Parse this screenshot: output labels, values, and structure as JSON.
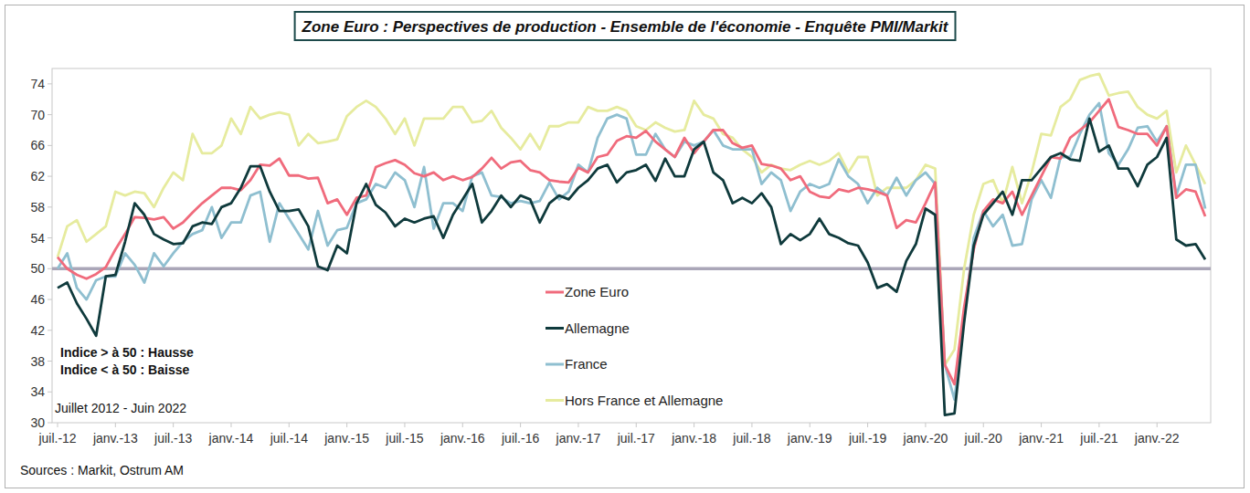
{
  "chart_data": {
    "type": "line",
    "title": "Zone Euro : Perspectives de production - Ensemble de l'économie - Enquête PMI/Markit",
    "annotations": [
      "Indice > à 50 : Hausse",
      "Indice < à 50 : Baisse",
      "Juillet 2012 - Juin 2022"
    ],
    "source": "Sources : Markit, Ostrum AM",
    "reference_line": 50,
    "categories": [
      "juil.-12",
      null,
      null,
      null,
      null,
      null,
      "janv.-13",
      null,
      null,
      null,
      null,
      null,
      "juil.-13",
      null,
      null,
      null,
      null,
      null,
      "janv.-14",
      null,
      null,
      null,
      null,
      null,
      "juil.-14",
      null,
      null,
      null,
      null,
      null,
      "janv.-15",
      null,
      null,
      null,
      null,
      null,
      "juil.-15",
      null,
      null,
      null,
      null,
      null,
      "janv.-16",
      null,
      null,
      null,
      null,
      null,
      "juil.-16",
      null,
      null,
      null,
      null,
      null,
      "janv.-17",
      null,
      null,
      null,
      null,
      null,
      "juil.-17",
      null,
      null,
      null,
      null,
      null,
      "janv.-18",
      null,
      null,
      null,
      null,
      null,
      "juil.-18",
      null,
      null,
      null,
      null,
      null,
      "janv.-19",
      null,
      null,
      null,
      null,
      null,
      "juil.-19",
      null,
      null,
      null,
      null,
      null,
      "janv.-20",
      null,
      null,
      null,
      null,
      null,
      "juil.-20",
      null,
      null,
      null,
      null,
      null,
      "janv.-21",
      null,
      null,
      null,
      null,
      null,
      "juil.-21",
      null,
      null,
      null,
      null,
      null,
      "janv.-22",
      null,
      null,
      null,
      null,
      null
    ],
    "series": [
      {
        "name": "Zone Euro",
        "color": "#f06b7c",
        "values": [
          51.5,
          50.0,
          49.2,
          48.7,
          49.3,
          50.2,
          52.5,
          54.5,
          56.7,
          56.6,
          56.4,
          56.7,
          55.2,
          56.0,
          57.3,
          58.5,
          59.5,
          60.5,
          60.5,
          60.2,
          61.5,
          63.5,
          63.4,
          64.3,
          62.1,
          62.1,
          61.7,
          61.8,
          58.5,
          59.0,
          57.0,
          59.2,
          59.5,
          63.2,
          63.7,
          64.1,
          63.5,
          62.4,
          62.0,
          62.5,
          61.5,
          62.0,
          61.5,
          61.9,
          63.0,
          64.4,
          63.0,
          63.8,
          64.0,
          62.8,
          62.5,
          61.5,
          61.3,
          61.2,
          63.1,
          62.5,
          64.5,
          64.8,
          66.6,
          67.2,
          67.0,
          67.9,
          66.5,
          65.5,
          64.5,
          67.0,
          65.0,
          66.5,
          68.0,
          68.0,
          66.3,
          65.7,
          66.0,
          63.6,
          63.4,
          63.0,
          61.5,
          62.0,
          60.0,
          59.4,
          59.2,
          60.3,
          60.0,
          60.5,
          60.3,
          60.0,
          59.5,
          55.3,
          56.3,
          56.0,
          58.5,
          61.2,
          37.5,
          35.0,
          45.0,
          52.5,
          57.5,
          59.0,
          58.5,
          60.0,
          57.0,
          59.5,
          62.0,
          64.5,
          64.3,
          67.0,
          68.0,
          69.0,
          70.5,
          72.0,
          68.4,
          68.0,
          67.5,
          67.5,
          66.0,
          68.5,
          59.2,
          60.3,
          60.0,
          56.8
        ]
      },
      {
        "name": "Allemagne",
        "color": "#0f3a3c",
        "values": [
          47.5,
          48.2,
          45.5,
          43.5,
          41.3,
          49.0,
          49.2,
          53.5,
          58.5,
          57.0,
          54.5,
          53.8,
          53.2,
          53.3,
          55.5,
          56.0,
          55.8,
          58.0,
          58.5,
          60.5,
          63.3,
          63.3,
          60.0,
          57.5,
          57.5,
          57.7,
          55.5,
          50.3,
          49.8,
          53.0,
          52.0,
          58.5,
          61.0,
          58.3,
          57.3,
          55.5,
          56.5,
          56.0,
          56.5,
          56.8,
          54.0,
          57.0,
          59.0,
          61.0,
          56.0,
          57.5,
          59.5,
          58.0,
          59.5,
          59.0,
          56.0,
          58.5,
          59.5,
          59.0,
          60.5,
          61.5,
          63.0,
          63.5,
          61.2,
          62.5,
          62.8,
          63.5,
          61.4,
          64.3,
          62.0,
          62.0,
          65.5,
          66.5,
          62.5,
          61.5,
          58.5,
          59.2,
          58.5,
          59.8,
          58.0,
          53.2,
          54.5,
          53.7,
          54.5,
          56.5,
          54.5,
          54.0,
          53.3,
          53.0,
          50.8,
          47.5,
          48.0,
          47.0,
          51.0,
          53.2,
          57.8,
          57.0,
          31.0,
          31.2,
          43.0,
          53.0,
          57.0,
          58.5,
          60.0,
          57.0,
          61.5,
          61.5,
          63.0,
          64.5,
          65.0,
          64.2,
          64.0,
          69.5,
          65.2,
          66.0,
          63.0,
          63.0,
          60.7,
          63.5,
          64.5,
          67.0,
          53.8,
          53.0,
          53.2,
          51.2
        ]
      },
      {
        "name": "France",
        "color": "#8fbfd0",
        "values": [
          50.0,
          52.0,
          47.5,
          46.0,
          48.5,
          49.0,
          49.0,
          52.0,
          50.5,
          48.2,
          52.0,
          50.3,
          52.0,
          53.5,
          54.5,
          55.0,
          58.0,
          54.0,
          56.0,
          56.0,
          59.5,
          60.0,
          53.5,
          58.5,
          56.5,
          54.5,
          52.5,
          57.5,
          53.0,
          55.0,
          55.3,
          58.5,
          59.0,
          61.0,
          60.5,
          62.5,
          61.5,
          58.0,
          63.2,
          55.2,
          58.5,
          58.5,
          57.5,
          62.0,
          62.5,
          59.5,
          59.3,
          58.5,
          58.8,
          58.5,
          58.8,
          61.2,
          59.0,
          60.0,
          63.5,
          62.5,
          67.0,
          69.5,
          70.0,
          69.5,
          64.8,
          64.8,
          67.5,
          65.5,
          64.5,
          66.5,
          66.0,
          66.5,
          68.0,
          66.0,
          65.5,
          65.5,
          65.5,
          61.0,
          62.5,
          61.5,
          57.5,
          60.0,
          61.0,
          60.5,
          61.0,
          64.2,
          62.0,
          61.0,
          58.5,
          60.5,
          59.5,
          61.8,
          59.5,
          61.5,
          62.5,
          61.0,
          37.5,
          33.0,
          43.5,
          54.0,
          57.5,
          55.5,
          57.0,
          53.0,
          53.2,
          59.0,
          61.5,
          59.2,
          64.5,
          64.5,
          67.5,
          70.0,
          71.5,
          65.0,
          63.5,
          65.5,
          68.3,
          68.5,
          66.5,
          68.5,
          59.5,
          63.5,
          63.5,
          57.8
        ]
      },
      {
        "name": "Hors France et Allemagne",
        "color": "#e6eb9e",
        "values": [
          51.5,
          55.5,
          56.3,
          53.5,
          54.5,
          55.5,
          60.0,
          59.5,
          60.0,
          59.8,
          58.0,
          60.5,
          62.5,
          61.5,
          67.5,
          65.0,
          65.0,
          66.0,
          69.5,
          67.5,
          71.0,
          69.5,
          70.0,
          70.3,
          70.0,
          66.0,
          67.5,
          66.3,
          66.5,
          66.8,
          69.8,
          71.0,
          71.8,
          71.0,
          69.5,
          67.5,
          69.5,
          66.0,
          69.5,
          69.5,
          69.5,
          71.0,
          71.0,
          69.0,
          69.2,
          70.5,
          68.3,
          67.0,
          65.5,
          67.5,
          65.5,
          68.5,
          68.5,
          69.0,
          69.0,
          71.0,
          70.5,
          70.5,
          71.0,
          70.5,
          68.5,
          68.0,
          69.0,
          68.3,
          67.8,
          68.0,
          71.8,
          70.0,
          69.5,
          67.5,
          67.0,
          65.5,
          64.5,
          62.5,
          63.5,
          63.0,
          62.8,
          63.5,
          64.0,
          63.5,
          64.0,
          65.0,
          62.5,
          64.5,
          64.5,
          59.5,
          60.5,
          60.5,
          60.5,
          61.5,
          63.5,
          63.0,
          37.5,
          39.5,
          50.0,
          57.0,
          61.0,
          61.5,
          58.5,
          63.2,
          58.5,
          62.5,
          67.5,
          67.3,
          71.0,
          72.0,
          74.5,
          75.0,
          75.3,
          72.5,
          72.8,
          73.0,
          71.0,
          70.0,
          69.5,
          70.5,
          62.5,
          66.0,
          63.5,
          61.0
        ]
      }
    ],
    "ylim": [
      30,
      76
    ],
    "yticks": [
      30,
      34,
      38,
      42,
      46,
      50,
      54,
      58,
      62,
      66,
      70,
      74
    ],
    "grid": false,
    "legend": "center"
  }
}
